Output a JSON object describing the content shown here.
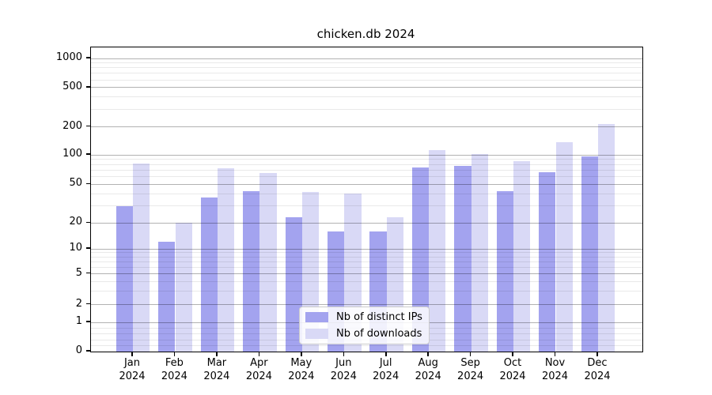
{
  "title": "chicken.db 2024",
  "chart_data": {
    "type": "bar",
    "title": "chicken.db 2024",
    "categories": [
      "Jan 2024",
      "Feb 2024",
      "Mar 2024",
      "Apr 2024",
      "May 2024",
      "Jun 2024",
      "Jul 2024",
      "Aug 2024",
      "Sep 2024",
      "Oct 2024",
      "Nov 2024",
      "Dec 2024"
    ],
    "series": [
      {
        "name": "Nb of distinct IPs",
        "color": "#a3a3ef",
        "values": [
          30,
          12,
          37,
          43,
          23,
          16,
          16,
          75,
          77,
          43,
          66,
          97
        ]
      },
      {
        "name": "Nb of downloads",
        "color": "#d9d9f6",
        "values": [
          82,
          20,
          73,
          65,
          42,
          40,
          23,
          112,
          102,
          87,
          138,
          215
        ]
      }
    ],
    "xlabel": "",
    "ylabel": "",
    "yscale": "symlog",
    "yticks": [
      0,
      1,
      2,
      5,
      10,
      20,
      50,
      100,
      200,
      500,
      1000
    ],
    "ylim": [
      0,
      1300
    ],
    "grid": "horizontal major and minor gridlines, drawn over bars",
    "legend_position": "lower center"
  },
  "colors": {
    "background": "#ffffff",
    "bar_distinct_ips": "#a3a3ef",
    "bar_downloads": "#d9d9f6",
    "major_grid": "#b0b0b0",
    "minor_grid": "#e8e8e8",
    "axis": "#000000",
    "legend_border": "#cccccc"
  }
}
